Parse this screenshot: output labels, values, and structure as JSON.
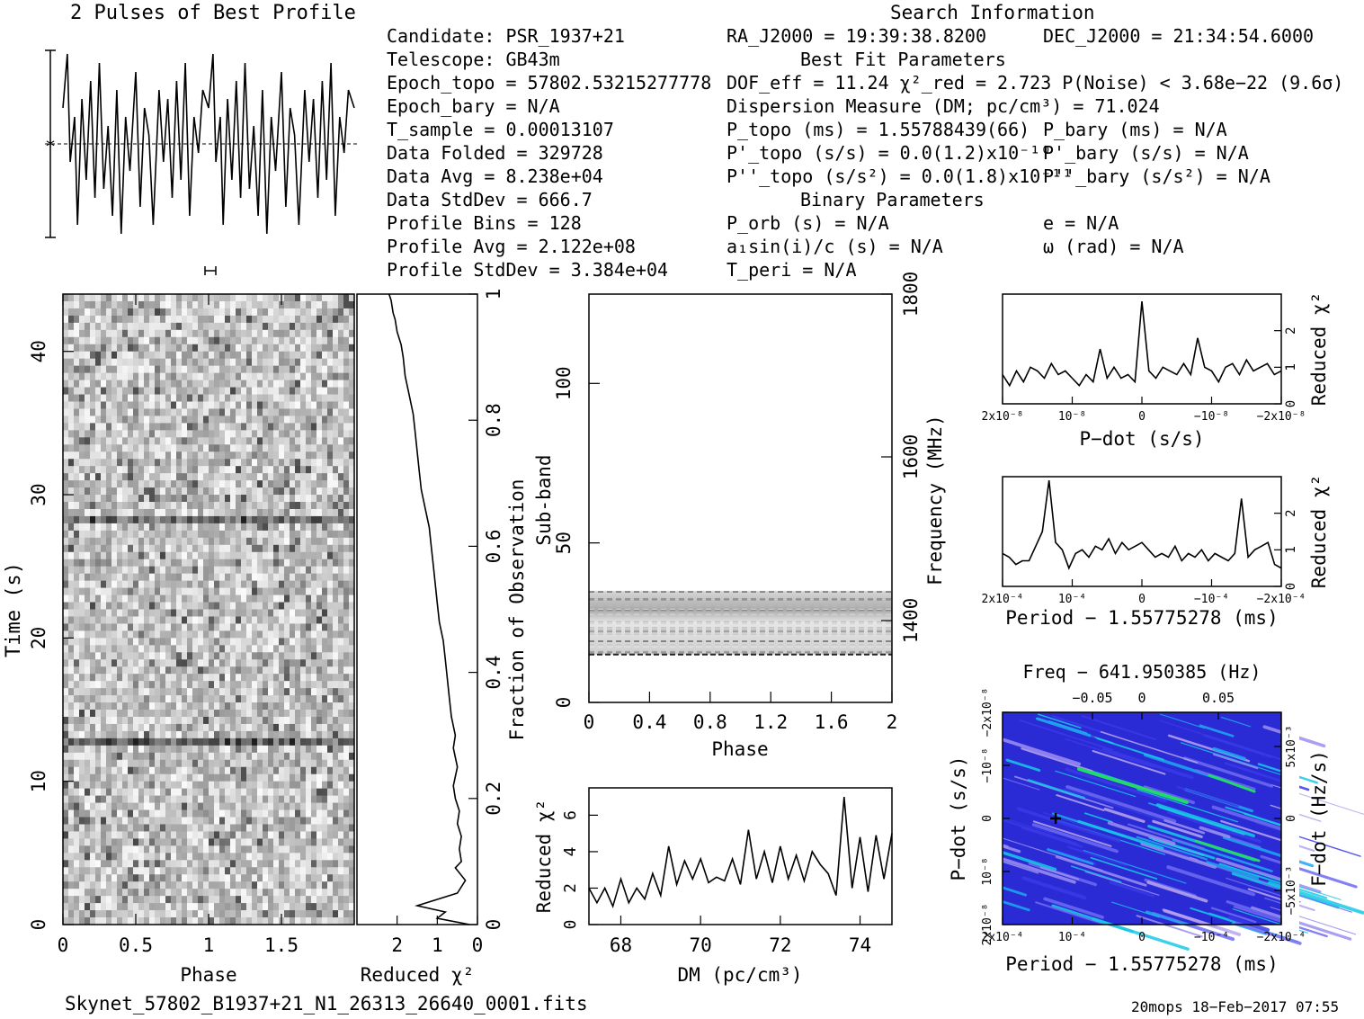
{
  "profile_title": "2 Pulses of Best Profile",
  "search_title": "Search Information",
  "info_left": [
    "Candidate:  PSR_1937+21",
    "Telescope:  GB43m",
    "Epoch_topo = 57802.53215277778",
    "Epoch_bary = N/A",
    "T_sample        =  0.00013107",
    "Data Folded     =  329728",
    "Data Avg        =  8.238e+04",
    "Data StdDev     =  666.7",
    "Profile Bins    =  128",
    "Profile Avg     =  2.122e+08",
    "Profile StdDev  =  3.384e+04"
  ],
  "info_mid": [
    "RA_J2000 = 19:39:38.8200",
    "DOF_eff = 11.24  χ²_red = 2.723  P(Noise) < 3.68e−22  (9.6σ)",
    "Dispersion Measure (DM; pc/cm³) = 71.024",
    "P_topo (ms) =  1.55788439(66)",
    "P'_topo (s/s) = 0.0(1.2)x10⁻¹⁰",
    "P''_topo (s/s²) = 0.0(1.8)x10⁻¹¹",
    "P_orb (s) = N/A",
    "a₁sin(i)/c (s) = N/A",
    "T_peri = N/A"
  ],
  "info_right": [
    "DEC_J2000 = 21:34:54.6000",
    "P_bary (ms) = N/A",
    "P'_bary (s/s) = N/A",
    "P''_bary (s/s²) = N/A",
    "e = N/A",
    "ω (rad) = N/A"
  ],
  "best_fit_header": "Best Fit Parameters",
  "binary_header": "Binary Parameters",
  "footer_left": "Skynet_57802_B1937+21_N1_26313_26640_0001.fits",
  "footer_right": "20mops 18−Feb−2017 07:55",
  "chart_data": [
    {
      "type": "line",
      "title": "2 Pulses of Best Profile",
      "x": [
        0.0,
        0.03,
        0.05,
        0.08,
        0.1,
        0.13,
        0.16,
        0.19,
        0.22,
        0.25,
        0.28,
        0.31,
        0.34,
        0.37,
        0.4,
        0.43,
        0.46,
        0.5,
        0.53,
        0.56,
        0.59,
        0.62,
        0.66,
        0.69,
        0.72,
        0.75,
        0.78,
        0.81,
        0.84,
        0.87,
        0.9,
        0.93,
        0.96,
        1.0,
        1.03,
        1.05,
        1.08,
        1.1,
        1.13,
        1.16,
        1.19,
        1.22,
        1.25,
        1.28,
        1.31,
        1.34,
        1.37,
        1.4,
        1.43,
        1.46,
        1.5,
        1.53,
        1.56,
        1.59,
        1.62,
        1.66,
        1.69,
        1.72,
        1.75,
        1.78,
        1.81,
        1.84,
        1.87,
        1.9,
        1.93,
        1.96,
        2.0
      ],
      "y": [
        0.4,
        1.0,
        -0.2,
        0.3,
        -0.9,
        0.5,
        -0.4,
        0.7,
        -0.6,
        0.9,
        -0.5,
        0.2,
        -0.8,
        0.6,
        -1.0,
        0.3,
        -0.3,
        0.8,
        -0.7,
        0.4,
        0.1,
        -0.9,
        0.6,
        -0.2,
        0.5,
        -0.6,
        0.7,
        -0.4,
        0.9,
        -0.8,
        0.3,
        -0.1,
        0.6,
        0.4,
        1.0,
        -0.2,
        0.3,
        -0.9,
        0.5,
        -0.4,
        0.7,
        -0.6,
        0.9,
        -0.5,
        0.2,
        -0.8,
        0.6,
        -1.0,
        0.3,
        -0.3,
        0.8,
        -0.7,
        0.4,
        0.1,
        -0.9,
        0.6,
        -0.2,
        0.5,
        -0.6,
        0.7,
        -0.4,
        0.9,
        -0.8,
        0.3,
        -0.1,
        0.6,
        0.4
      ]
    },
    {
      "type": "heatmap",
      "xlabel": "Phase",
      "ylabel": "Time (s)",
      "xlim": [
        0,
        2
      ],
      "ylim": [
        0,
        44
      ],
      "xticks": [
        "0",
        "0.5",
        "1",
        "1.5"
      ],
      "yticks": [
        "0",
        "10",
        "20",
        "30",
        "40"
      ]
    },
    {
      "type": "line",
      "xlabel": "Reduced χ²",
      "ylabel": "Fraction of Observation",
      "xlim": [
        3,
        0
      ],
      "ylim": [
        0,
        1
      ],
      "xticks": [
        "2",
        "1",
        "0"
      ],
      "yticks": [
        "0",
        "0.2",
        "0.4",
        "0.6",
        "0.8",
        "1"
      ],
      "x": [
        0.2,
        1.0,
        0.8,
        1.5,
        0.5,
        0.3,
        0.55,
        0.4,
        0.45,
        0.4,
        0.5,
        0.45,
        0.55,
        0.6,
        0.5,
        0.6,
        0.55,
        0.65,
        0.7,
        0.75,
        0.8,
        0.85,
        0.95,
        1.0,
        1.05,
        1.1,
        1.15,
        1.2,
        1.3,
        1.4,
        1.45,
        1.5,
        1.55,
        1.6,
        1.7,
        1.8,
        1.85,
        1.9,
        2.0,
        2.05,
        2.1,
        2.15,
        2.2
      ],
      "y": [
        0.0,
        0.01,
        0.02,
        0.03,
        0.05,
        0.07,
        0.09,
        0.1,
        0.12,
        0.14,
        0.16,
        0.18,
        0.2,
        0.22,
        0.25,
        0.28,
        0.3,
        0.33,
        0.36,
        0.39,
        0.42,
        0.45,
        0.48,
        0.51,
        0.54,
        0.57,
        0.6,
        0.63,
        0.66,
        0.69,
        0.72,
        0.75,
        0.78,
        0.81,
        0.84,
        0.87,
        0.9,
        0.92,
        0.94,
        0.96,
        0.97,
        0.99,
        1.0
      ]
    },
    {
      "type": "heatmap",
      "xlabel": "Phase",
      "ylabel": "Sub-band",
      "y2label": "Frequency (MHz)",
      "xlim": [
        0,
        2
      ],
      "ylim": [
        0,
        128
      ],
      "xticks": [
        "0",
        "0.4",
        "0.8",
        "1.2",
        "1.6",
        "2"
      ],
      "yticks": [
        "0",
        "50",
        "100"
      ],
      "y2ticks": [
        "1400",
        "1600",
        "1800"
      ],
      "band_subbands": [
        15,
        35
      ]
    },
    {
      "type": "line",
      "xlabel": "DM (pc/cm³)",
      "ylabel": "Reduced χ²",
      "xlim": [
        67.2,
        74.8
      ],
      "ylim": [
        0,
        7.5
      ],
      "xticks": [
        "68",
        "70",
        "72",
        "74"
      ],
      "yticks": [
        "0",
        "2",
        "4",
        "6"
      ],
      "x": [
        67.2,
        67.4,
        67.6,
        67.8,
        68.0,
        68.2,
        68.4,
        68.6,
        68.8,
        69.0,
        69.2,
        69.4,
        69.6,
        69.8,
        70.0,
        70.2,
        70.4,
        70.6,
        70.8,
        71.0,
        71.2,
        71.4,
        71.6,
        71.8,
        72.0,
        72.2,
        72.4,
        72.6,
        72.8,
        73.0,
        73.2,
        73.4,
        73.6,
        73.8,
        74.0,
        74.2,
        74.4,
        74.6,
        74.8
      ],
      "y": [
        2.0,
        1.2,
        2.0,
        1.0,
        2.5,
        1.2,
        2.0,
        1.4,
        2.8,
        1.6,
        4.3,
        2.2,
        3.5,
        2.5,
        3.6,
        2.3,
        2.6,
        2.4,
        3.6,
        2.2,
        5.2,
        2.5,
        4.0,
        2.3,
        4.3,
        2.5,
        3.8,
        2.4,
        4.0,
        3.3,
        2.8,
        1.6,
        7.0,
        2.0,
        4.8,
        1.8,
        4.9,
        2.5,
        5.0
      ]
    },
    {
      "type": "line",
      "xlabel": "P−dot (s/s)",
      "ylabel": "Reduced χ²",
      "xlim": [
        2e-08,
        -2e-08
      ],
      "ylim": [
        0,
        3
      ],
      "xticks": [
        "2x10⁻⁸",
        "10⁻⁸",
        "0",
        "−10⁻⁸",
        "−2x10⁻⁸"
      ],
      "yticks": [
        "0",
        "1",
        "2"
      ],
      "x": [
        2e-08,
        1.9e-08,
        1.8e-08,
        1.7e-08,
        1.6e-08,
        1.5e-08,
        1.4e-08,
        1.3e-08,
        1.2e-08,
        1.1e-08,
        1e-08,
        9e-09,
        8e-09,
        7e-09,
        6e-09,
        5e-09,
        4e-09,
        3e-09,
        2e-09,
        1e-09,
        0,
        -1e-09,
        -2e-09,
        -3e-09,
        -4e-09,
        -5e-09,
        -6e-09,
        -7e-09,
        -8e-09,
        -9e-09,
        -1e-08,
        -1.1e-08,
        -1.2e-08,
        -1.3e-08,
        -1.4e-08,
        -1.5e-08,
        -1.6e-08,
        -1.7e-08,
        -1.8e-08,
        -1.9e-08,
        -2e-08
      ],
      "y": [
        0.8,
        0.5,
        0.9,
        0.6,
        1.0,
        0.9,
        0.7,
        1.1,
        0.8,
        0.9,
        0.7,
        0.5,
        0.8,
        0.6,
        1.5,
        0.7,
        1.0,
        0.7,
        0.8,
        0.6,
        2.8,
        0.9,
        0.7,
        1.0,
        0.9,
        0.8,
        1.1,
        0.8,
        1.8,
        1.0,
        0.9,
        0.6,
        1.0,
        1.1,
        0.8,
        1.2,
        0.9,
        1.0,
        1.1,
        0.8,
        0.9
      ]
    },
    {
      "type": "line",
      "xlabel": "Period − 1.55775278 (ms)",
      "ylabel": "Reduced χ²",
      "xlim": [
        0.0002,
        -0.00022
      ],
      "ylim": [
        0,
        3
      ],
      "xticks": [
        "2x10⁻⁴",
        "10⁻⁴",
        "0",
        "−10⁻⁴",
        "−2x10⁻⁴"
      ],
      "yticks": [
        "0",
        "1",
        "2"
      ],
      "x": [
        0.0002,
        0.00019,
        0.00018,
        0.00017,
        0.00016,
        0.00015,
        0.00014,
        0.00013,
        0.00012,
        0.00011,
        0.0001,
        9e-05,
        8e-05,
        7e-05,
        6e-05,
        5e-05,
        4e-05,
        3e-05,
        2e-05,
        1e-05,
        0,
        -1e-05,
        -2e-05,
        -3e-05,
        -4e-05,
        -5e-05,
        -6e-05,
        -7e-05,
        -8e-05,
        -9e-05,
        -0.0001,
        -0.00011,
        -0.00012,
        -0.00013,
        -0.00014,
        -0.00015,
        -0.00016,
        -0.00017,
        -0.00018,
        -0.00019,
        -0.0002,
        -0.00021,
        -0.00022
      ],
      "y": [
        0.9,
        0.8,
        0.6,
        0.7,
        0.7,
        1.1,
        1.5,
        2.9,
        1.2,
        1.0,
        0.5,
        0.9,
        1.0,
        0.8,
        1.1,
        1.0,
        1.3,
        0.9,
        1.2,
        1.0,
        1.1,
        1.2,
        1.0,
        0.8,
        0.9,
        0.8,
        1.1,
        0.7,
        0.9,
        0.8,
        1.0,
        0.7,
        0.9,
        0.8,
        0.7,
        0.9,
        2.4,
        0.8,
        1.0,
        1.1,
        1.2,
        0.6,
        0.5
      ]
    },
    {
      "type": "heatmap",
      "xlabel": "Period − 1.55775278 (ms)",
      "ylabel": "P−dot (s/s)",
      "x2label": "Freq − 641.950385 (Hz)",
      "y2label": "F−dot (Hz/s)",
      "xticks": [
        "2x10⁻⁴",
        "10⁻⁴",
        "0",
        "−10⁻⁴",
        "−2x10⁻⁴"
      ],
      "yticks": [
        "2x10⁻⁸",
        "10⁻⁸",
        "0",
        "−10⁻⁸",
        "−2x10⁻⁸"
      ],
      "x2ticks": [
        "−0.05",
        "0",
        "0.05"
      ],
      "y2ticks": [
        "−5x10⁻³",
        "0",
        "5x10⁻³"
      ],
      "best": {
        "x": 0.00012,
        "y": 0
      }
    }
  ]
}
